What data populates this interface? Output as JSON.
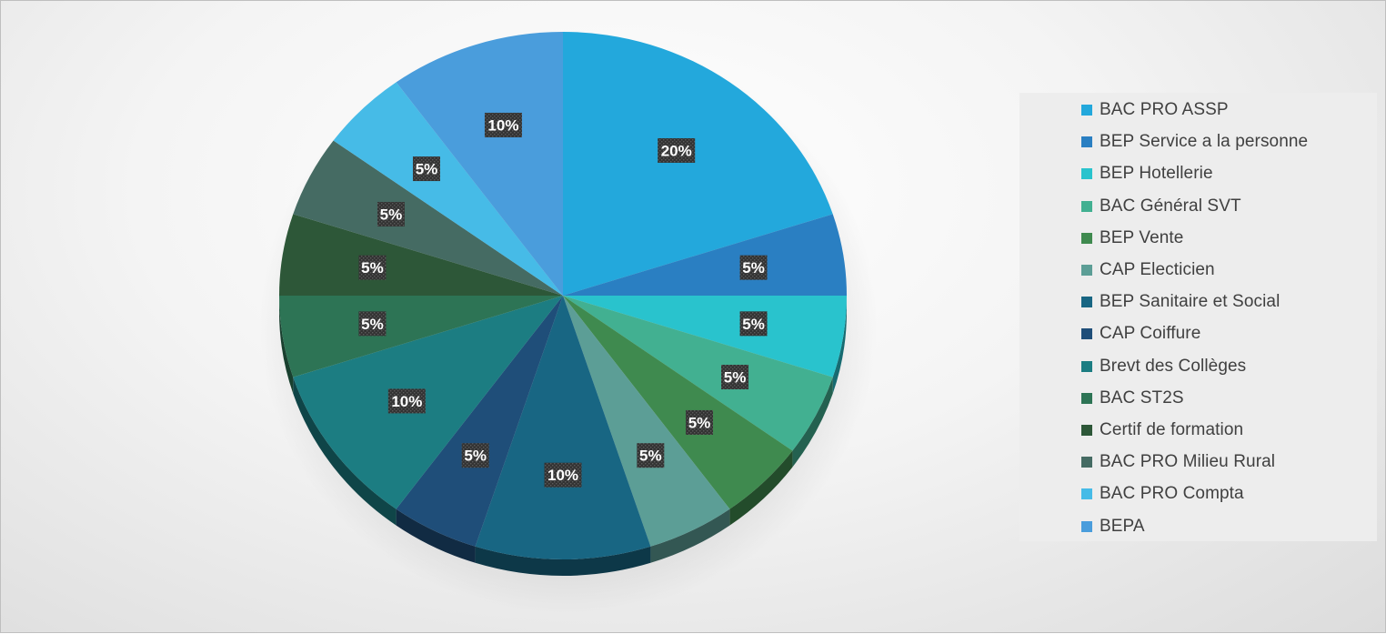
{
  "chart_data": {
    "type": "pie",
    "title": "",
    "categories": [
      "BAC PRO ASSP",
      "BEP Service a la personne",
      "BEP Hotellerie",
      "BAC Général SVT",
      "BEP Vente",
      "CAP Electicien",
      "BEP Sanitaire et Social",
      "CAP Coiffure",
      "Brevt des Collèges",
      "BAC ST2S",
      "Certif de formation",
      "BAC PRO Milieu Rural",
      "BAC PRO Compta",
      "BEPA"
    ],
    "values": [
      20,
      5,
      5,
      5,
      5,
      5,
      10,
      5,
      10,
      5,
      5,
      5,
      5,
      10
    ],
    "data_labels": [
      "20%",
      "5%",
      "5%",
      "5%",
      "5%",
      "5%",
      "10%",
      "5%",
      "10%",
      "5%",
      "5%",
      "5%",
      "5%",
      "10%"
    ],
    "colors": [
      "#23a8dc",
      "#2a7fc2",
      "#29c3cd",
      "#42b091",
      "#3f8a4f",
      "#5c9e96",
      "#186683",
      "#1f4e79",
      "#1c7d82",
      "#2d7455",
      "#2d5738",
      "#456b63",
      "#46bbe7",
      "#4a9ddc"
    ],
    "legend_position": "right",
    "start_angle": "12 o'clock, clockwise"
  }
}
